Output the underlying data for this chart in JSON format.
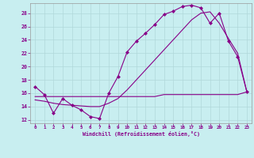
{
  "xlabel": "Windchill (Refroidissement éolien,°C)",
  "background_color": "#c8eef0",
  "grid_color": "#b0d8da",
  "line_color": "#880088",
  "xlim": [
    -0.5,
    23.5
  ],
  "ylim": [
    11.5,
    29.5
  ],
  "xticks": [
    0,
    1,
    2,
    3,
    4,
    5,
    6,
    7,
    8,
    9,
    10,
    11,
    12,
    13,
    14,
    15,
    16,
    17,
    18,
    19,
    20,
    21,
    22,
    23
  ],
  "yticks": [
    12,
    14,
    16,
    18,
    20,
    22,
    24,
    26,
    28
  ],
  "line1_x": [
    0,
    1,
    2,
    3,
    4,
    5,
    6,
    7,
    8,
    9,
    10,
    11,
    12,
    13,
    14,
    15,
    16,
    17,
    18,
    19,
    20,
    21,
    22,
    23
  ],
  "line1_y": [
    17.0,
    15.8,
    13.0,
    15.2,
    14.2,
    13.5,
    12.5,
    12.2,
    16.0,
    18.5,
    22.2,
    23.8,
    25.0,
    26.3,
    27.8,
    28.3,
    29.0,
    29.2,
    28.8,
    26.5,
    28.0,
    23.8,
    21.5,
    16.2
  ],
  "line2_x": [
    0,
    1,
    2,
    3,
    4,
    5,
    6,
    7,
    8,
    9,
    10,
    11,
    12,
    13,
    14,
    15,
    16,
    17,
    18,
    19,
    20,
    21,
    22,
    23
  ],
  "line2_y": [
    15.0,
    14.8,
    14.5,
    14.3,
    14.2,
    14.1,
    14.0,
    14.0,
    14.5,
    15.2,
    16.5,
    18.0,
    19.5,
    21.0,
    22.5,
    24.0,
    25.5,
    27.0,
    28.0,
    28.2,
    26.5,
    24.2,
    22.0,
    16.2
  ],
  "line3_x": [
    0,
    1,
    2,
    3,
    4,
    5,
    6,
    7,
    8,
    9,
    10,
    11,
    12,
    13,
    14,
    15,
    16,
    17,
    18,
    19,
    20,
    21,
    22,
    23
  ],
  "line3_y": [
    15.5,
    15.5,
    15.5,
    15.5,
    15.5,
    15.5,
    15.5,
    15.5,
    15.5,
    15.5,
    15.5,
    15.5,
    15.5,
    15.5,
    15.8,
    15.8,
    15.8,
    15.8,
    15.8,
    15.8,
    15.8,
    15.8,
    15.8,
    16.2
  ]
}
